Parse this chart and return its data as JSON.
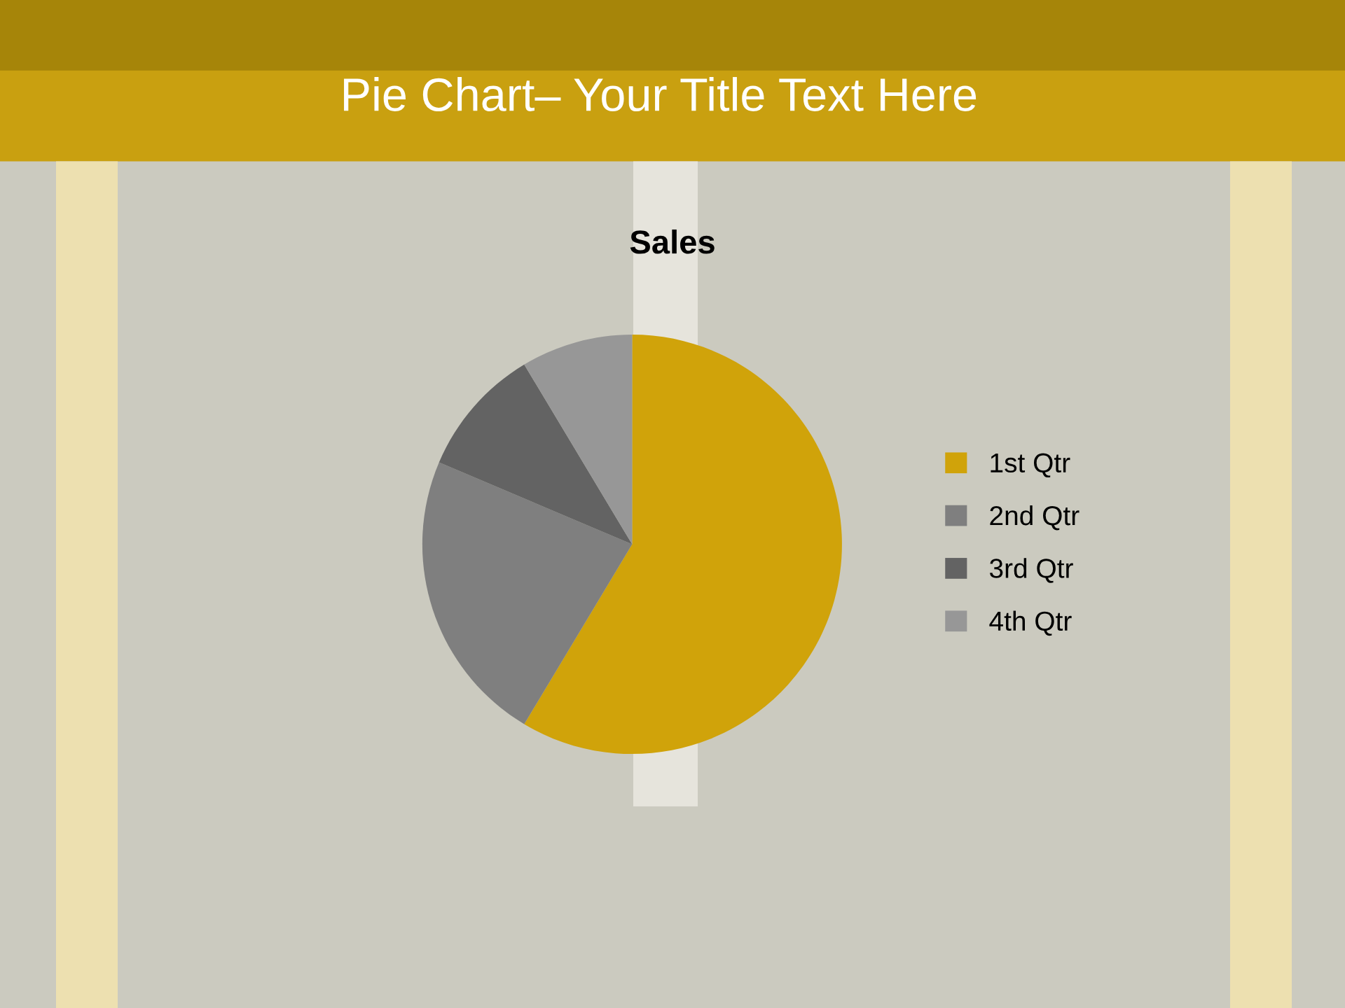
{
  "chart_data": {
    "type": "pie",
    "title": "Sales",
    "annotations": [
      "Pie Chart– Your Title Text Here"
    ],
    "categories": [
      "1st Qtr",
      "2nd Qtr",
      "3rd Qtr",
      "4th Qtr"
    ],
    "values": [
      58.6,
      22.8,
      10.0,
      8.6
    ],
    "colors": [
      "#d0a30a",
      "#7f7f7f",
      "#636363",
      "#979797"
    ],
    "legend": "right"
  }
}
